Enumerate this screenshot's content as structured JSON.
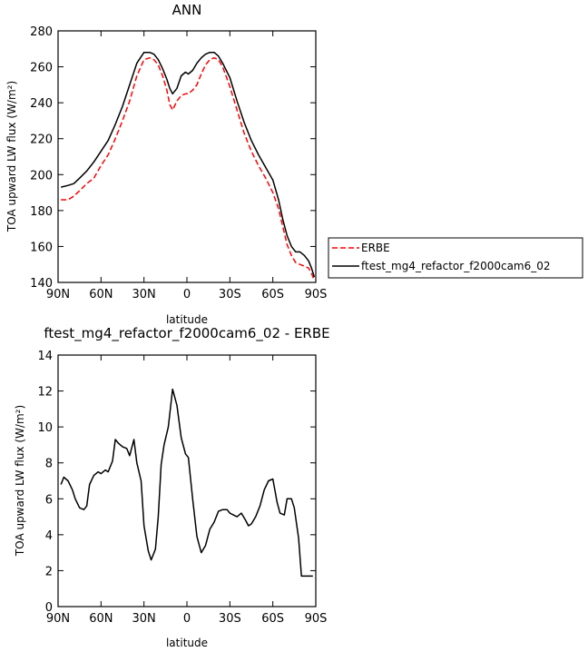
{
  "chart_data": [
    {
      "type": "line",
      "title": "ANN",
      "xlabel": "latitude",
      "ylabel": "TOA upward LW flux (W/m²)",
      "xlim": [
        -90,
        90
      ],
      "ylim": [
        140,
        280
      ],
      "xticks": [
        {
          "value": -90,
          "label": "90N"
        },
        {
          "value": -60,
          "label": "60N"
        },
        {
          "value": -30,
          "label": "30N"
        },
        {
          "value": 0,
          "label": "0"
        },
        {
          "value": 30,
          "label": "30S"
        },
        {
          "value": 60,
          "label": "60S"
        },
        {
          "value": 90,
          "label": "90S"
        }
      ],
      "yticks": [
        140,
        160,
        180,
        200,
        220,
        240,
        260,
        280
      ],
      "legend_position": "right",
      "series": [
        {
          "name": "ERBE",
          "color": "#ff0000",
          "style": "dashed",
          "x": [
            -88,
            -83,
            -79,
            -75,
            -70,
            -65,
            -60,
            -55,
            -50,
            -45,
            -40,
            -35,
            -30,
            -26,
            -23,
            -20,
            -17,
            -14,
            -12,
            -10,
            -7,
            -4,
            -1,
            1,
            4,
            7,
            10,
            13,
            16,
            19,
            22,
            25,
            30,
            35,
            40,
            45,
            50,
            55,
            60,
            64,
            67,
            70,
            73,
            76,
            79,
            82,
            85,
            87,
            89
          ],
          "y": [
            186,
            186,
            188,
            191,
            195,
            198,
            205,
            211,
            220,
            230,
            241,
            255,
            264,
            265,
            264,
            261,
            255,
            247,
            239,
            236,
            241,
            244,
            245,
            245,
            247,
            250,
            256,
            261,
            264,
            265,
            264,
            260,
            249,
            236,
            223,
            213,
            205,
            198,
            190,
            181,
            171,
            161,
            155,
            151,
            150,
            149,
            148,
            145,
            141
          ]
        },
        {
          "name": "ftest_mg4_refactor_f2000cam6_02",
          "color": "#000000",
          "style": "solid",
          "x": [
            -88,
            -83,
            -79,
            -75,
            -70,
            -65,
            -60,
            -55,
            -50,
            -45,
            -40,
            -35,
            -30,
            -26,
            -23,
            -20,
            -17,
            -14,
            -12,
            -10,
            -7,
            -4,
            -1,
            1,
            4,
            7,
            10,
            13,
            16,
            19,
            22,
            25,
            30,
            35,
            40,
            45,
            50,
            55,
            60,
            64,
            67,
            70,
            73,
            76,
            79,
            82,
            85,
            87,
            89
          ],
          "y": [
            193,
            194,
            195,
            198,
            202,
            207,
            213,
            219,
            228,
            238,
            250,
            262,
            268,
            268,
            267,
            264,
            259,
            253,
            248,
            245,
            248,
            255,
            257,
            256,
            258,
            262,
            265,
            267,
            268,
            268,
            266,
            262,
            254,
            241,
            229,
            219,
            211,
            204,
            197,
            186,
            175,
            166,
            160,
            157,
            157,
            155,
            152,
            148,
            143
          ]
        }
      ]
    },
    {
      "type": "line",
      "title": "ftest_mg4_refactor_f2000cam6_02 - ERBE",
      "xlabel": "latitude",
      "ylabel": "TOA upward LW flux (W/m²)",
      "xlim": [
        -90,
        90
      ],
      "ylim": [
        0,
        14
      ],
      "xticks": [
        {
          "value": -90,
          "label": "90N"
        },
        {
          "value": -60,
          "label": "60N"
        },
        {
          "value": -30,
          "label": "30N"
        },
        {
          "value": 0,
          "label": "0"
        },
        {
          "value": 30,
          "label": "30S"
        },
        {
          "value": 60,
          "label": "60S"
        },
        {
          "value": 90,
          "label": "90S"
        }
      ],
      "yticks": [
        0,
        2,
        4,
        6,
        8,
        10,
        12,
        14
      ],
      "series": [
        {
          "color": "#000000",
          "style": "solid",
          "x": [
            -88,
            -86,
            -83,
            -80,
            -78,
            -75,
            -72,
            -70,
            -68,
            -65,
            -62,
            -60,
            -57,
            -55,
            -52,
            -50,
            -48,
            -45,
            -42,
            -40,
            -37,
            -35,
            -32,
            -30,
            -27,
            -25,
            -22,
            -20,
            -18,
            -16,
            -13,
            -10,
            -7,
            -4,
            -1,
            1,
            4,
            7,
            10,
            13,
            16,
            19,
            22,
            25,
            28,
            30,
            35,
            38,
            41,
            43,
            45,
            48,
            51,
            54,
            57,
            60,
            63,
            65,
            68,
            70,
            73,
            75,
            78,
            80,
            83,
            85,
            88
          ],
          "y": [
            6.8,
            7.2,
            7.0,
            6.5,
            6.0,
            5.5,
            5.4,
            5.6,
            6.8,
            7.3,
            7.5,
            7.4,
            7.6,
            7.5,
            8.1,
            9.3,
            9.1,
            8.9,
            8.8,
            8.4,
            9.3,
            8.0,
            7.0,
            4.5,
            3.1,
            2.6,
            3.2,
            5.0,
            7.9,
            9.0,
            10.0,
            12.1,
            11.2,
            9.4,
            8.5,
            8.3,
            6.0,
            3.9,
            3.0,
            3.4,
            4.3,
            4.7,
            5.3,
            5.4,
            5.4,
            5.2,
            5.0,
            5.2,
            4.8,
            4.5,
            4.6,
            5.0,
            5.6,
            6.5,
            7.0,
            7.1,
            5.8,
            5.2,
            5.1,
            6.0,
            6.0,
            5.5,
            3.8,
            1.7,
            1.7,
            1.7,
            1.7
          ]
        }
      ]
    }
  ]
}
